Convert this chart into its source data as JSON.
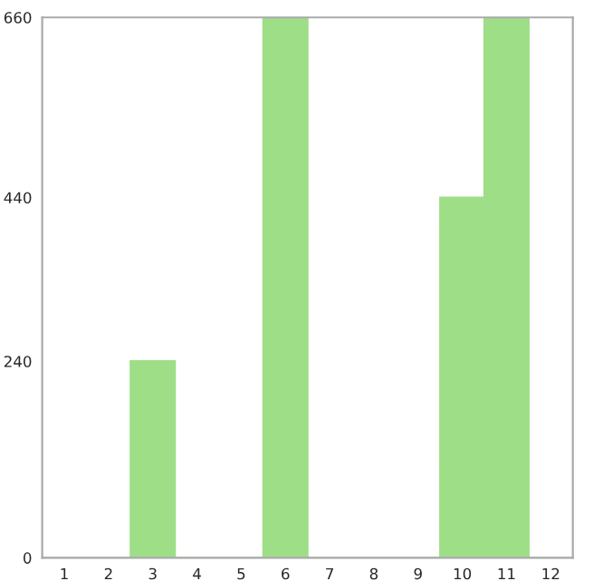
{
  "chart_data": {
    "type": "bar",
    "categories": [
      "1",
      "2",
      "3",
      "4",
      "5",
      "6",
      "7",
      "8",
      "9",
      "10",
      "11",
      "12"
    ],
    "values": [
      0,
      0,
      240,
      0,
      0,
      660,
      0,
      0,
      0,
      440,
      660,
      0
    ],
    "color": "#9ede87",
    "ylim": [
      0,
      660
    ],
    "yticks": [
      0,
      240,
      440,
      660
    ],
    "grid": false
  }
}
